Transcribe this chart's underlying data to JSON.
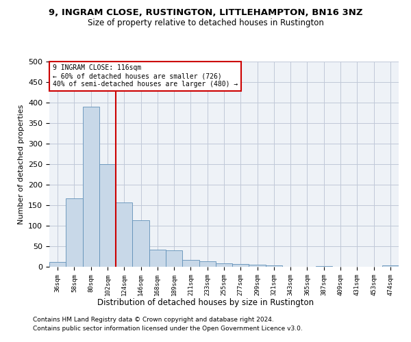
{
  "title": "9, INGRAM CLOSE, RUSTINGTON, LITTLEHAMPTON, BN16 3NZ",
  "subtitle": "Size of property relative to detached houses in Rustington",
  "xlabel": "Distribution of detached houses by size in Rustington",
  "ylabel": "Number of detached properties",
  "footer1": "Contains HM Land Registry data © Crown copyright and database right 2024.",
  "footer2": "Contains public sector information licensed under the Open Government Licence v3.0.",
  "annotation_line1": "9 INGRAM CLOSE: 116sqm",
  "annotation_line2": "← 60% of detached houses are smaller (726)",
  "annotation_line3": "40% of semi-detached houses are larger (480) →",
  "bar_color": "#c8d8e8",
  "bar_edge_color": "#6090b8",
  "line_color": "#cc0000",
  "annotation_box_color": "#cc0000",
  "grid_color": "#c0c8d8",
  "bg_color": "#eef2f7",
  "categories": [
    "36sqm",
    "58sqm",
    "80sqm",
    "102sqm",
    "124sqm",
    "146sqm",
    "168sqm",
    "189sqm",
    "211sqm",
    "233sqm",
    "255sqm",
    "277sqm",
    "299sqm",
    "321sqm",
    "343sqm",
    "365sqm",
    "387sqm",
    "409sqm",
    "431sqm",
    "453sqm",
    "474sqm"
  ],
  "values": [
    11,
    167,
    390,
    250,
    157,
    113,
    42,
    40,
    17,
    14,
    8,
    7,
    5,
    3,
    0,
    0,
    2,
    0,
    0,
    0,
    4
  ],
  "property_line_index": 3.5,
  "ylim": [
    0,
    500
  ],
  "yticks": [
    0,
    50,
    100,
    150,
    200,
    250,
    300,
    350,
    400,
    450,
    500
  ]
}
